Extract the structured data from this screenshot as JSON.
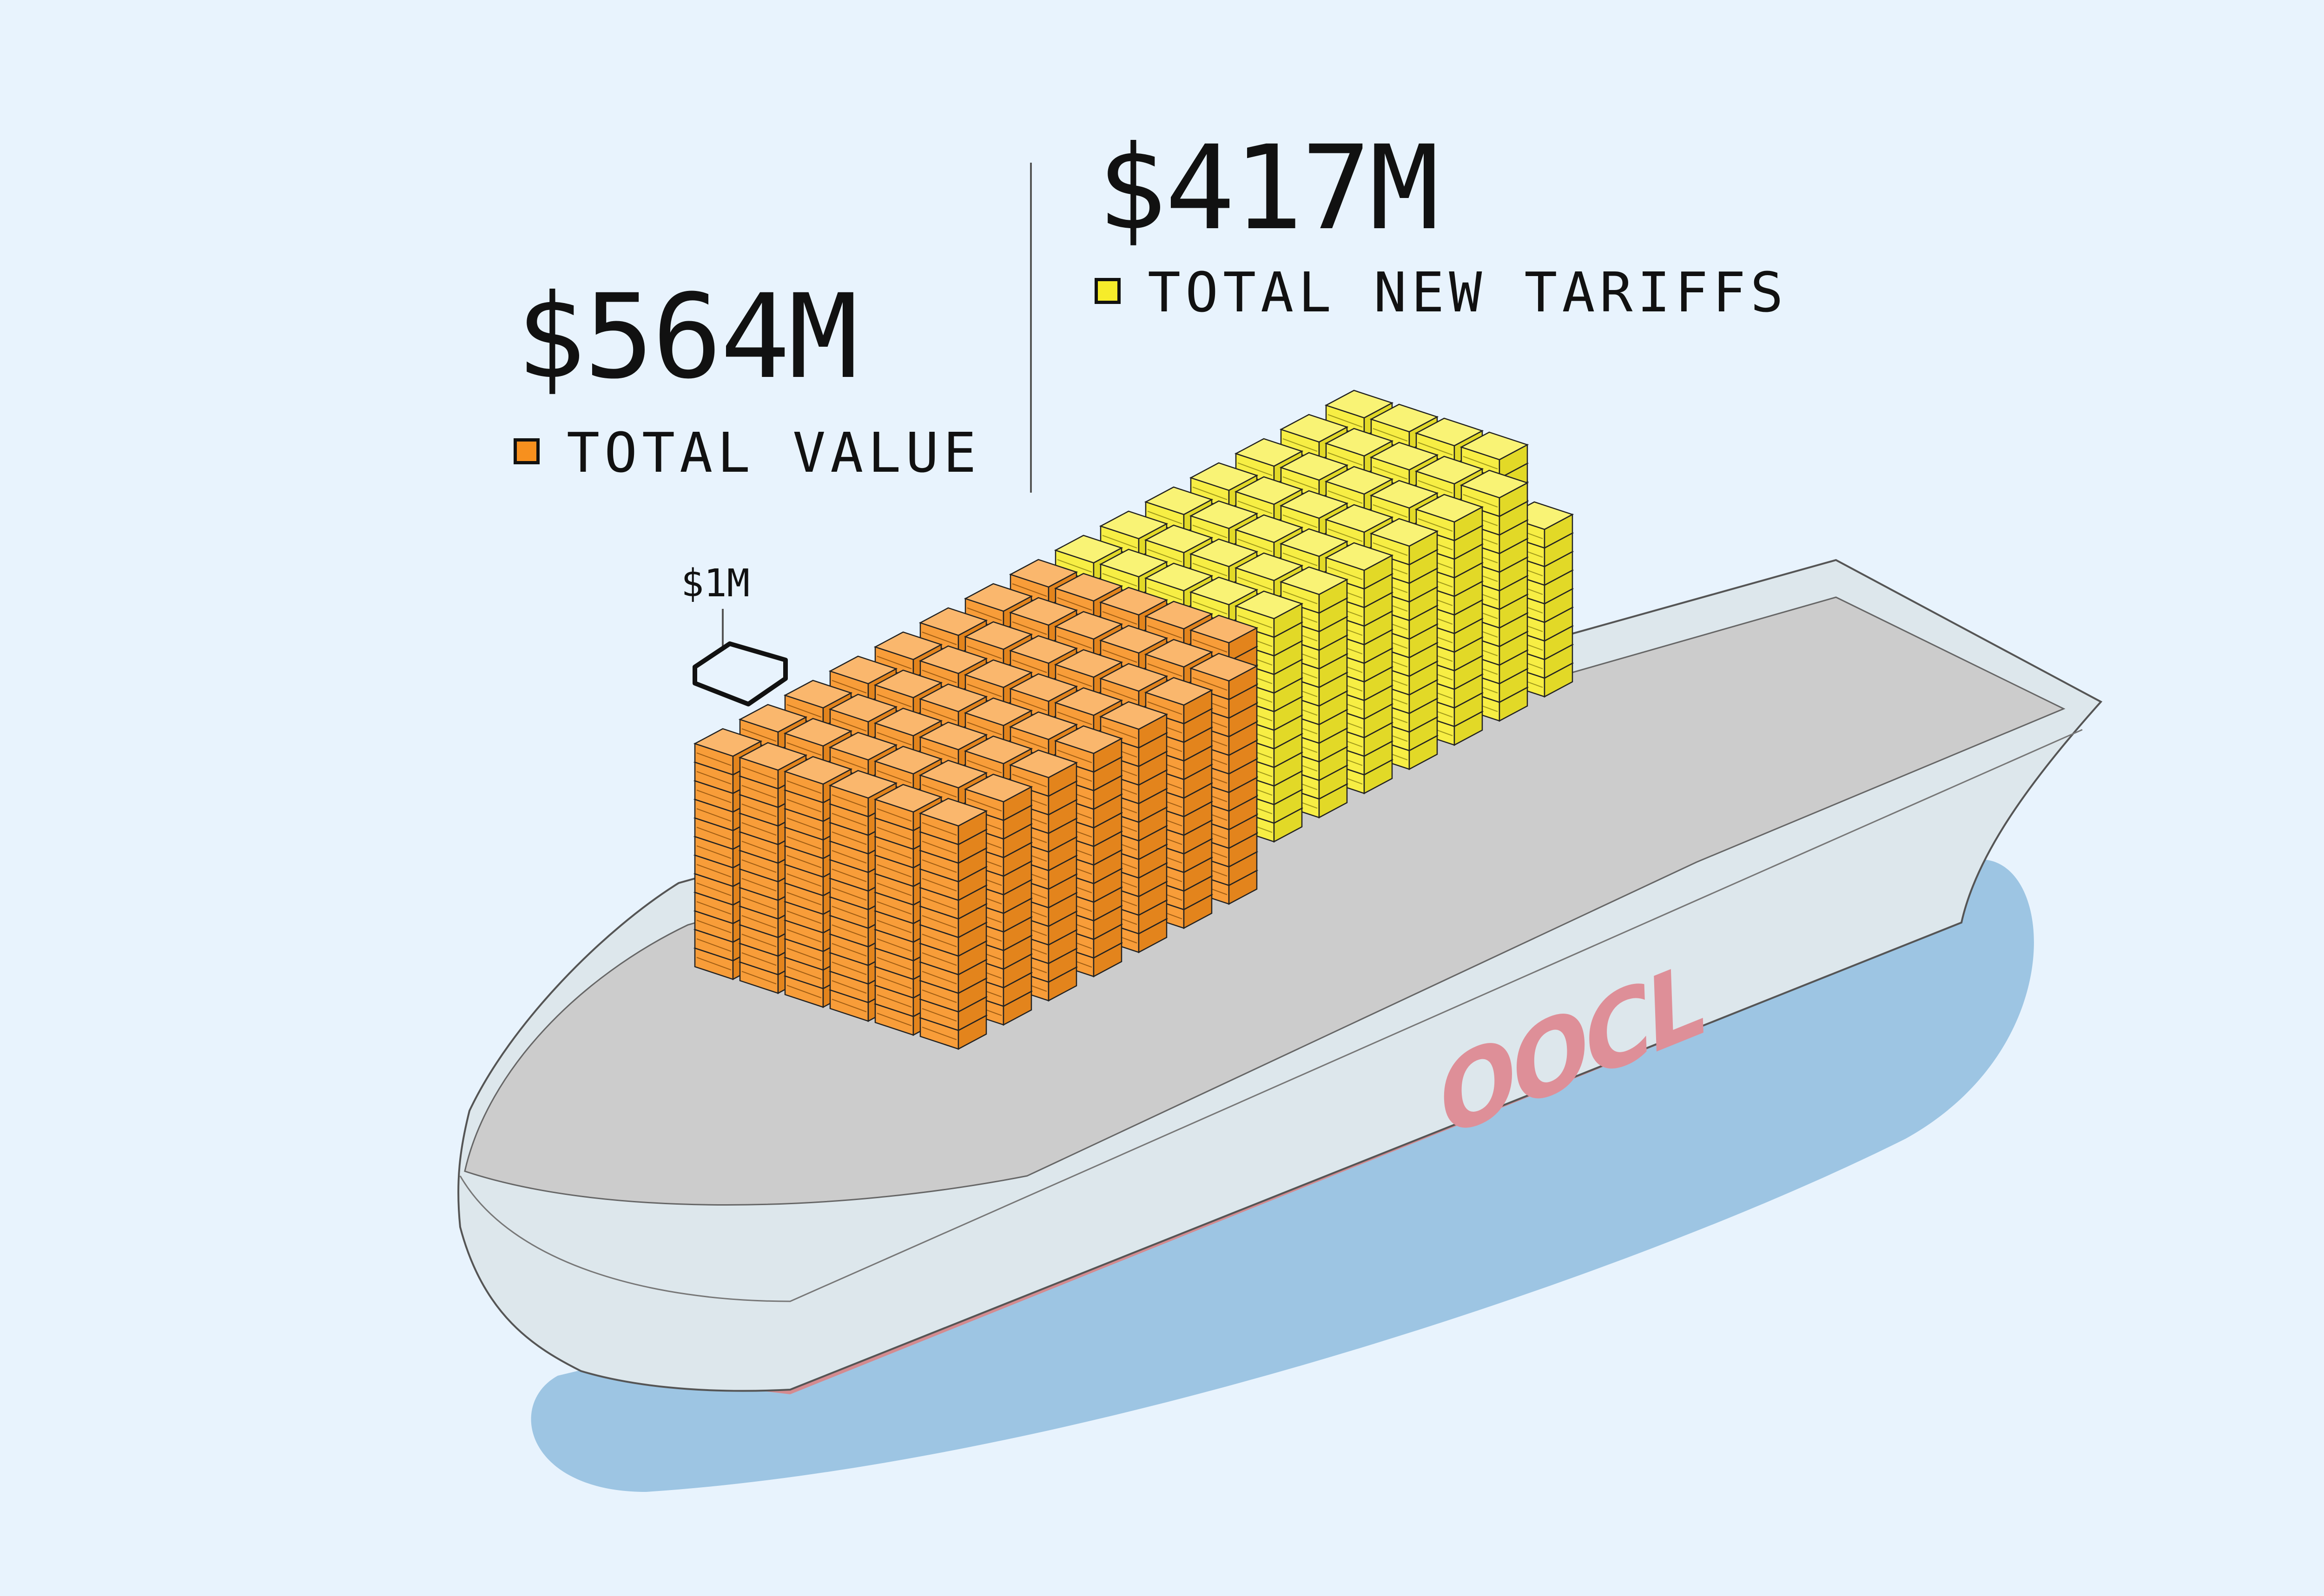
{
  "colors": {
    "background": "#e8f3fd",
    "value_orange": "#f7901e",
    "tariff_yellow": "#f6ec2a",
    "hull": "#dde7ec",
    "deck": "#cccccc",
    "hull_stripe": "#d48b90",
    "water_shadow": "#9dc5e3",
    "logo": "#de8f98"
  },
  "value": {
    "amount": "$564M",
    "legend": "TOTAL VALUE",
    "units": 564
  },
  "tariffs": {
    "amount": "$417M",
    "legend": "TOTAL NEW TARIFFS",
    "units": 417
  },
  "unit": {
    "label": "$1M"
  },
  "ship": {
    "logo": "OOCL"
  }
}
